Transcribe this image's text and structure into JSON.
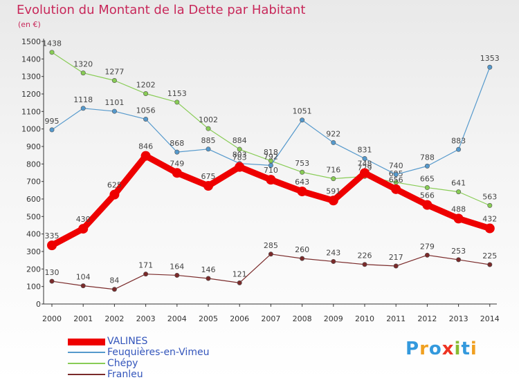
{
  "chart_data": {
    "type": "line",
    "title": "Evolution du Montant de la Dette par Habitant",
    "subtitle": "(en €)",
    "x": [
      "2000",
      "2001",
      "2002",
      "2003",
      "2004",
      "2005",
      "2006",
      "2007",
      "2008",
      "2009",
      "2010",
      "2011",
      "2012",
      "2013",
      "2014"
    ],
    "ylim": [
      0,
      1500
    ],
    "yticks": [
      0,
      100,
      200,
      300,
      400,
      500,
      600,
      700,
      800,
      900,
      1000,
      1100,
      1200,
      1300,
      1400,
      1500
    ],
    "grid": false,
    "legend_position": "bottom-left",
    "series": [
      {
        "name": "Franleu",
        "color": "#7a2a2a",
        "values": [
          130,
          104,
          84,
          171,
          164,
          146,
          121,
          285,
          260,
          243,
          226,
          217,
          279,
          253,
          225
        ]
      },
      {
        "name": "Chépy",
        "color": "#88cc55",
        "values": [
          1438,
          1320,
          1277,
          1202,
          1153,
          1002,
          884,
          818,
          753,
          716,
          729,
          695,
          665,
          641,
          563
        ]
      },
      {
        "name": "Feuquières-en-Vimeu",
        "color": "#5599cc",
        "values": [
          995,
          1118,
          1101,
          1056,
          868,
          885,
          803,
          792,
          1051,
          922,
          831,
          740,
          788,
          883,
          1353
        ]
      },
      {
        "name": "VALINES",
        "color": "#ee0000",
        "values": [
          335,
          430,
          625,
          846,
          749,
          675,
          783,
          710,
          643,
          591,
          748,
          656,
          566,
          488,
          432
        ]
      }
    ],
    "value_labels": [
      [
        "130",
        "104",
        "84",
        "171",
        "164",
        "146",
        "121",
        "285",
        "260",
        "243",
        "226",
        "217",
        "279",
        "253",
        "225"
      ],
      [
        "1438",
        "1320",
        "1277",
        "1202",
        "1153",
        "1002",
        "884",
        "818",
        "753",
        "716",
        "729",
        "695",
        "665",
        "641",
        "563"
      ],
      [
        "995",
        "1118",
        "1101",
        "1056",
        "868",
        "885",
        "803",
        "792",
        "1051",
        "922",
        "831",
        "740",
        "788",
        "883",
        "1353"
      ],
      [
        "335",
        "430",
        "625",
        "846",
        "749",
        "675",
        "783",
        "710",
        "643",
        "591",
        "748",
        "656",
        "566",
        "488",
        "432"
      ]
    ]
  },
  "legend": {
    "items": [
      {
        "label": "VALINES",
        "color": "#ee0000"
      },
      {
        "label": "Feuquières-en-Vimeu",
        "color": "#5599cc"
      },
      {
        "label": "Chépy",
        "color": "#88cc55"
      },
      {
        "label": "Franleu",
        "color": "#7a2a2a"
      }
    ]
  },
  "logo": {
    "letters": [
      "P",
      "r",
      "o",
      "x",
      "i",
      "t",
      "i"
    ],
    "colors": [
      "#3399dd",
      "#f0a020",
      "#3399dd",
      "#ee3322",
      "#88bb33",
      "#3399dd",
      "#f0a020"
    ]
  }
}
